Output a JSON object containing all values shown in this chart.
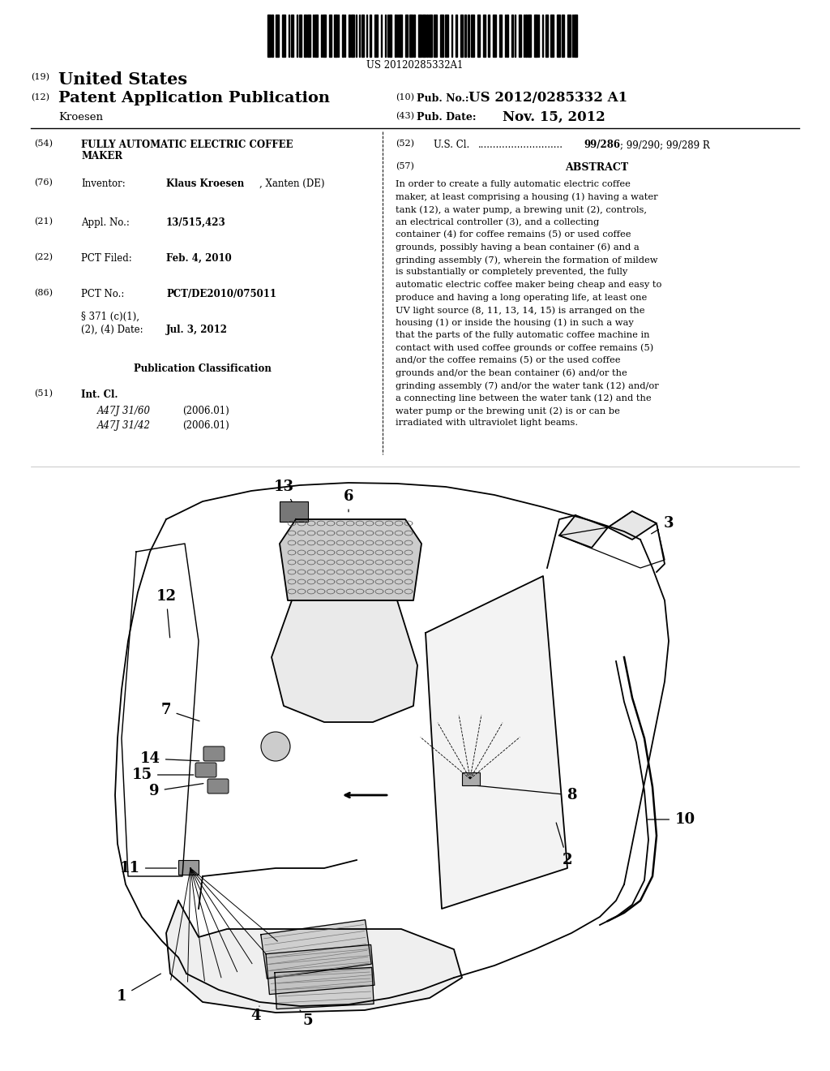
{
  "background_color": "#ffffff",
  "barcode_text": "US 20120285332A1",
  "header": {
    "number_19": "(19)",
    "united_states": "United States",
    "number_12": "(12)",
    "patent_app_pub": "Patent Application Publication",
    "inventor_name": "Kroesen",
    "number_10": "(10)",
    "pub_no_label": "Pub. No.:",
    "pub_no_value": "US 2012/0285332 A1",
    "number_43": "(43)",
    "pub_date_label": "Pub. Date:",
    "pub_date_value": "Nov. 15, 2012"
  },
  "abstract_text": "In order to create a fully automatic electric coffee maker, at least comprising a housing (1) having a water tank (12), a water pump, a brewing unit (2), controls, an electrical controller (3), and a collecting container (4) for coffee remains (5) or used coffee grounds, possibly having a bean container (6) and a grinding assembly (7), wherein the formation of mildew is substantially or completely prevented, the fully automatic electric coffee maker being cheap and easy to produce and having a long operating life, at least one UV light source (8, 11, 13, 14, 15) is arranged on the housing (1) or inside the housing (1) in such a way that the parts of the fully automatic coffee machine in contact with used coffee grounds or coffee remains (5) and/or the coffee remains (5) or the used coffee grounds and/or the bean container (6) and/or the grinding assembly (7) and/or the water tank (12) and/or a connecting line between the water tank (12) and the water pump or the brewing unit (2) is or can be irradiated with ultraviolet light beams."
}
